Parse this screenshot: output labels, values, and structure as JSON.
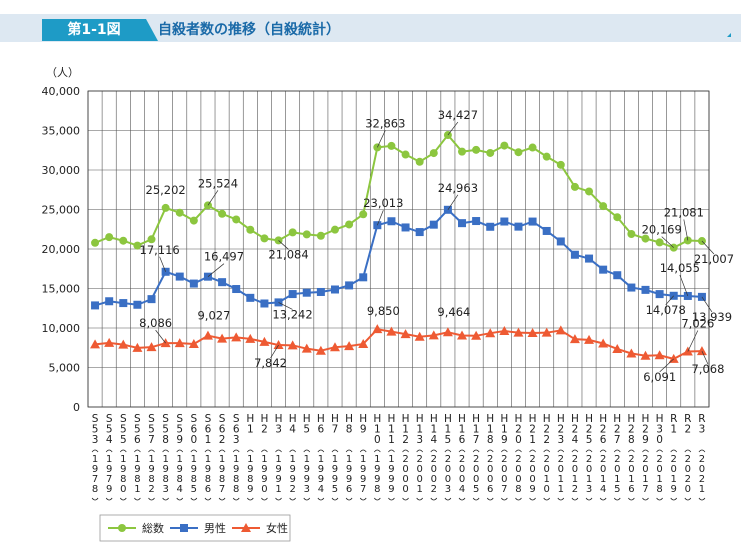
{
  "figure": {
    "number": "第1-1図",
    "title": "自殺者数の推移（自殺統計）"
  },
  "colors": {
    "header_band": "#dde8f2",
    "header_tab": "#1e9bc6",
    "total": "#8cc63f",
    "male": "#3a6fc4",
    "female": "#ee5a33",
    "grid": "#555555"
  },
  "chart_data": {
    "type": "line",
    "ylabel": "（人）",
    "ylim": [
      0,
      40000
    ],
    "yticks": [
      "0",
      "5,000",
      "10,000",
      "15,000",
      "20,000",
      "25,000",
      "30,000",
      "35,000",
      "40,000"
    ],
    "grid": true,
    "legend_position": "bottom-left",
    "categories": [
      {
        "era": "S53",
        "year": "1978"
      },
      {
        "era": "S54",
        "year": "1979"
      },
      {
        "era": "S55",
        "year": "1980"
      },
      {
        "era": "S56",
        "year": "1981"
      },
      {
        "era": "S57",
        "year": "1982"
      },
      {
        "era": "S58",
        "year": "1983"
      },
      {
        "era": "S59",
        "year": "1984"
      },
      {
        "era": "S60",
        "year": "1985"
      },
      {
        "era": "S61",
        "year": "1986"
      },
      {
        "era": "S62",
        "year": "1987"
      },
      {
        "era": "S63",
        "year": "1988"
      },
      {
        "era": "H1",
        "year": "1989"
      },
      {
        "era": "H2",
        "year": "1990"
      },
      {
        "era": "H3",
        "year": "1991"
      },
      {
        "era": "H4",
        "year": "1992"
      },
      {
        "era": "H5",
        "year": "1993"
      },
      {
        "era": "H6",
        "year": "1994"
      },
      {
        "era": "H7",
        "year": "1995"
      },
      {
        "era": "H8",
        "year": "1996"
      },
      {
        "era": "H9",
        "year": "1997"
      },
      {
        "era": "H10",
        "year": "1998"
      },
      {
        "era": "H11",
        "year": "1999"
      },
      {
        "era": "H12",
        "year": "2000"
      },
      {
        "era": "H13",
        "year": "2001"
      },
      {
        "era": "H14",
        "year": "2002"
      },
      {
        "era": "H15",
        "year": "2003"
      },
      {
        "era": "H16",
        "year": "2004"
      },
      {
        "era": "H17",
        "year": "2005"
      },
      {
        "era": "H18",
        "year": "2006"
      },
      {
        "era": "H19",
        "year": "2007"
      },
      {
        "era": "H20",
        "year": "2008"
      },
      {
        "era": "H21",
        "year": "2009"
      },
      {
        "era": "H22",
        "year": "2010"
      },
      {
        "era": "H23",
        "year": "2011"
      },
      {
        "era": "H24",
        "year": "2012"
      },
      {
        "era": "H25",
        "year": "2013"
      },
      {
        "era": "H26",
        "year": "2014"
      },
      {
        "era": "H27",
        "year": "2015"
      },
      {
        "era": "H28",
        "year": "2016"
      },
      {
        "era": "H29",
        "year": "2017"
      },
      {
        "era": "H30",
        "year": "2018"
      },
      {
        "era": "R1",
        "year": "2019"
      },
      {
        "era": "R2",
        "year": "2020"
      },
      {
        "era": "R3",
        "year": "2021"
      }
    ],
    "series": [
      {
        "name": "総数",
        "key": "total",
        "marker": "circle",
        "values": [
          20788,
          21503,
          21048,
          20434,
          21228,
          25202,
          24596,
          23599,
          25524,
          24460,
          23742,
          22436,
          21346,
          21084,
          22104,
          21851,
          21679,
          22445,
          23104,
          24391,
          32863,
          33048,
          31957,
          31042,
          32143,
          34427,
          32325,
          32552,
          32155,
          33093,
          32249,
          32845,
          31690,
          30651,
          27858,
          27283,
          25427,
          24025,
          21897,
          21321,
          20840,
          20169,
          21081,
          21007
        ],
        "labels": [
          {
            "index": 5,
            "text": "25,202"
          },
          {
            "index": 8,
            "text": "25,524"
          },
          {
            "index": 13,
            "text": "21,084"
          },
          {
            "index": 20,
            "text": "32,863"
          },
          {
            "index": 25,
            "text": "34,427"
          },
          {
            "index": 41,
            "text": "20,169"
          },
          {
            "index": 42,
            "text": "21,081"
          },
          {
            "index": 43,
            "text": "21,007"
          }
        ]
      },
      {
        "name": "男性",
        "key": "male",
        "marker": "square",
        "values": [
          12859,
          13386,
          13155,
          12942,
          13654,
          17116,
          16508,
          15624,
          16497,
          15802,
          14934,
          13818,
          13102,
          13242,
          14296,
          14468,
          14560,
          14874,
          15393,
          16416,
          23013,
          23512,
          22727,
          22144,
          23080,
          24963,
          23272,
          23540,
          22813,
          23478,
          22831,
          23472,
          22283,
          20955,
          19273,
          18787,
          17386,
          16681,
          15121,
          14826,
          14290,
          14078,
          14055,
          13939
        ],
        "labels": [
          {
            "index": 5,
            "text": "17,116"
          },
          {
            "index": 8,
            "text": "16,497"
          },
          {
            "index": 13,
            "text": "13,242"
          },
          {
            "index": 20,
            "text": "23,013"
          },
          {
            "index": 25,
            "text": "24,963"
          },
          {
            "index": 41,
            "text": "14,078"
          },
          {
            "index": 42,
            "text": "14,055"
          },
          {
            "index": 43,
            "text": "13,939"
          }
        ]
      },
      {
        "name": "女性",
        "key": "female",
        "marker": "triangle",
        "values": [
          7929,
          8117,
          7893,
          7492,
          7574,
          8086,
          8088,
          7975,
          9027,
          8658,
          8808,
          8618,
          8244,
          7842,
          7808,
          7383,
          7119,
          7571,
          7711,
          7975,
          9850,
          9536,
          9230,
          8898,
          9063,
          9464,
          9053,
          9012,
          9342,
          9615,
          9418,
          9373,
          9407,
          9696,
          8585,
          8496,
          8041,
          7344,
          6776,
          6495,
          6550,
          6091,
          7026,
          7068
        ],
        "labels": [
          {
            "index": 5,
            "text": "8,086"
          },
          {
            "index": 8,
            "text": "9,027"
          },
          {
            "index": 13,
            "text": "7,842"
          },
          {
            "index": 20,
            "text": "9,850"
          },
          {
            "index": 25,
            "text": "9,464"
          },
          {
            "index": 41,
            "text": "6,091"
          },
          {
            "index": 42,
            "text": "7,026"
          },
          {
            "index": 43,
            "text": "7,068"
          }
        ]
      }
    ]
  }
}
